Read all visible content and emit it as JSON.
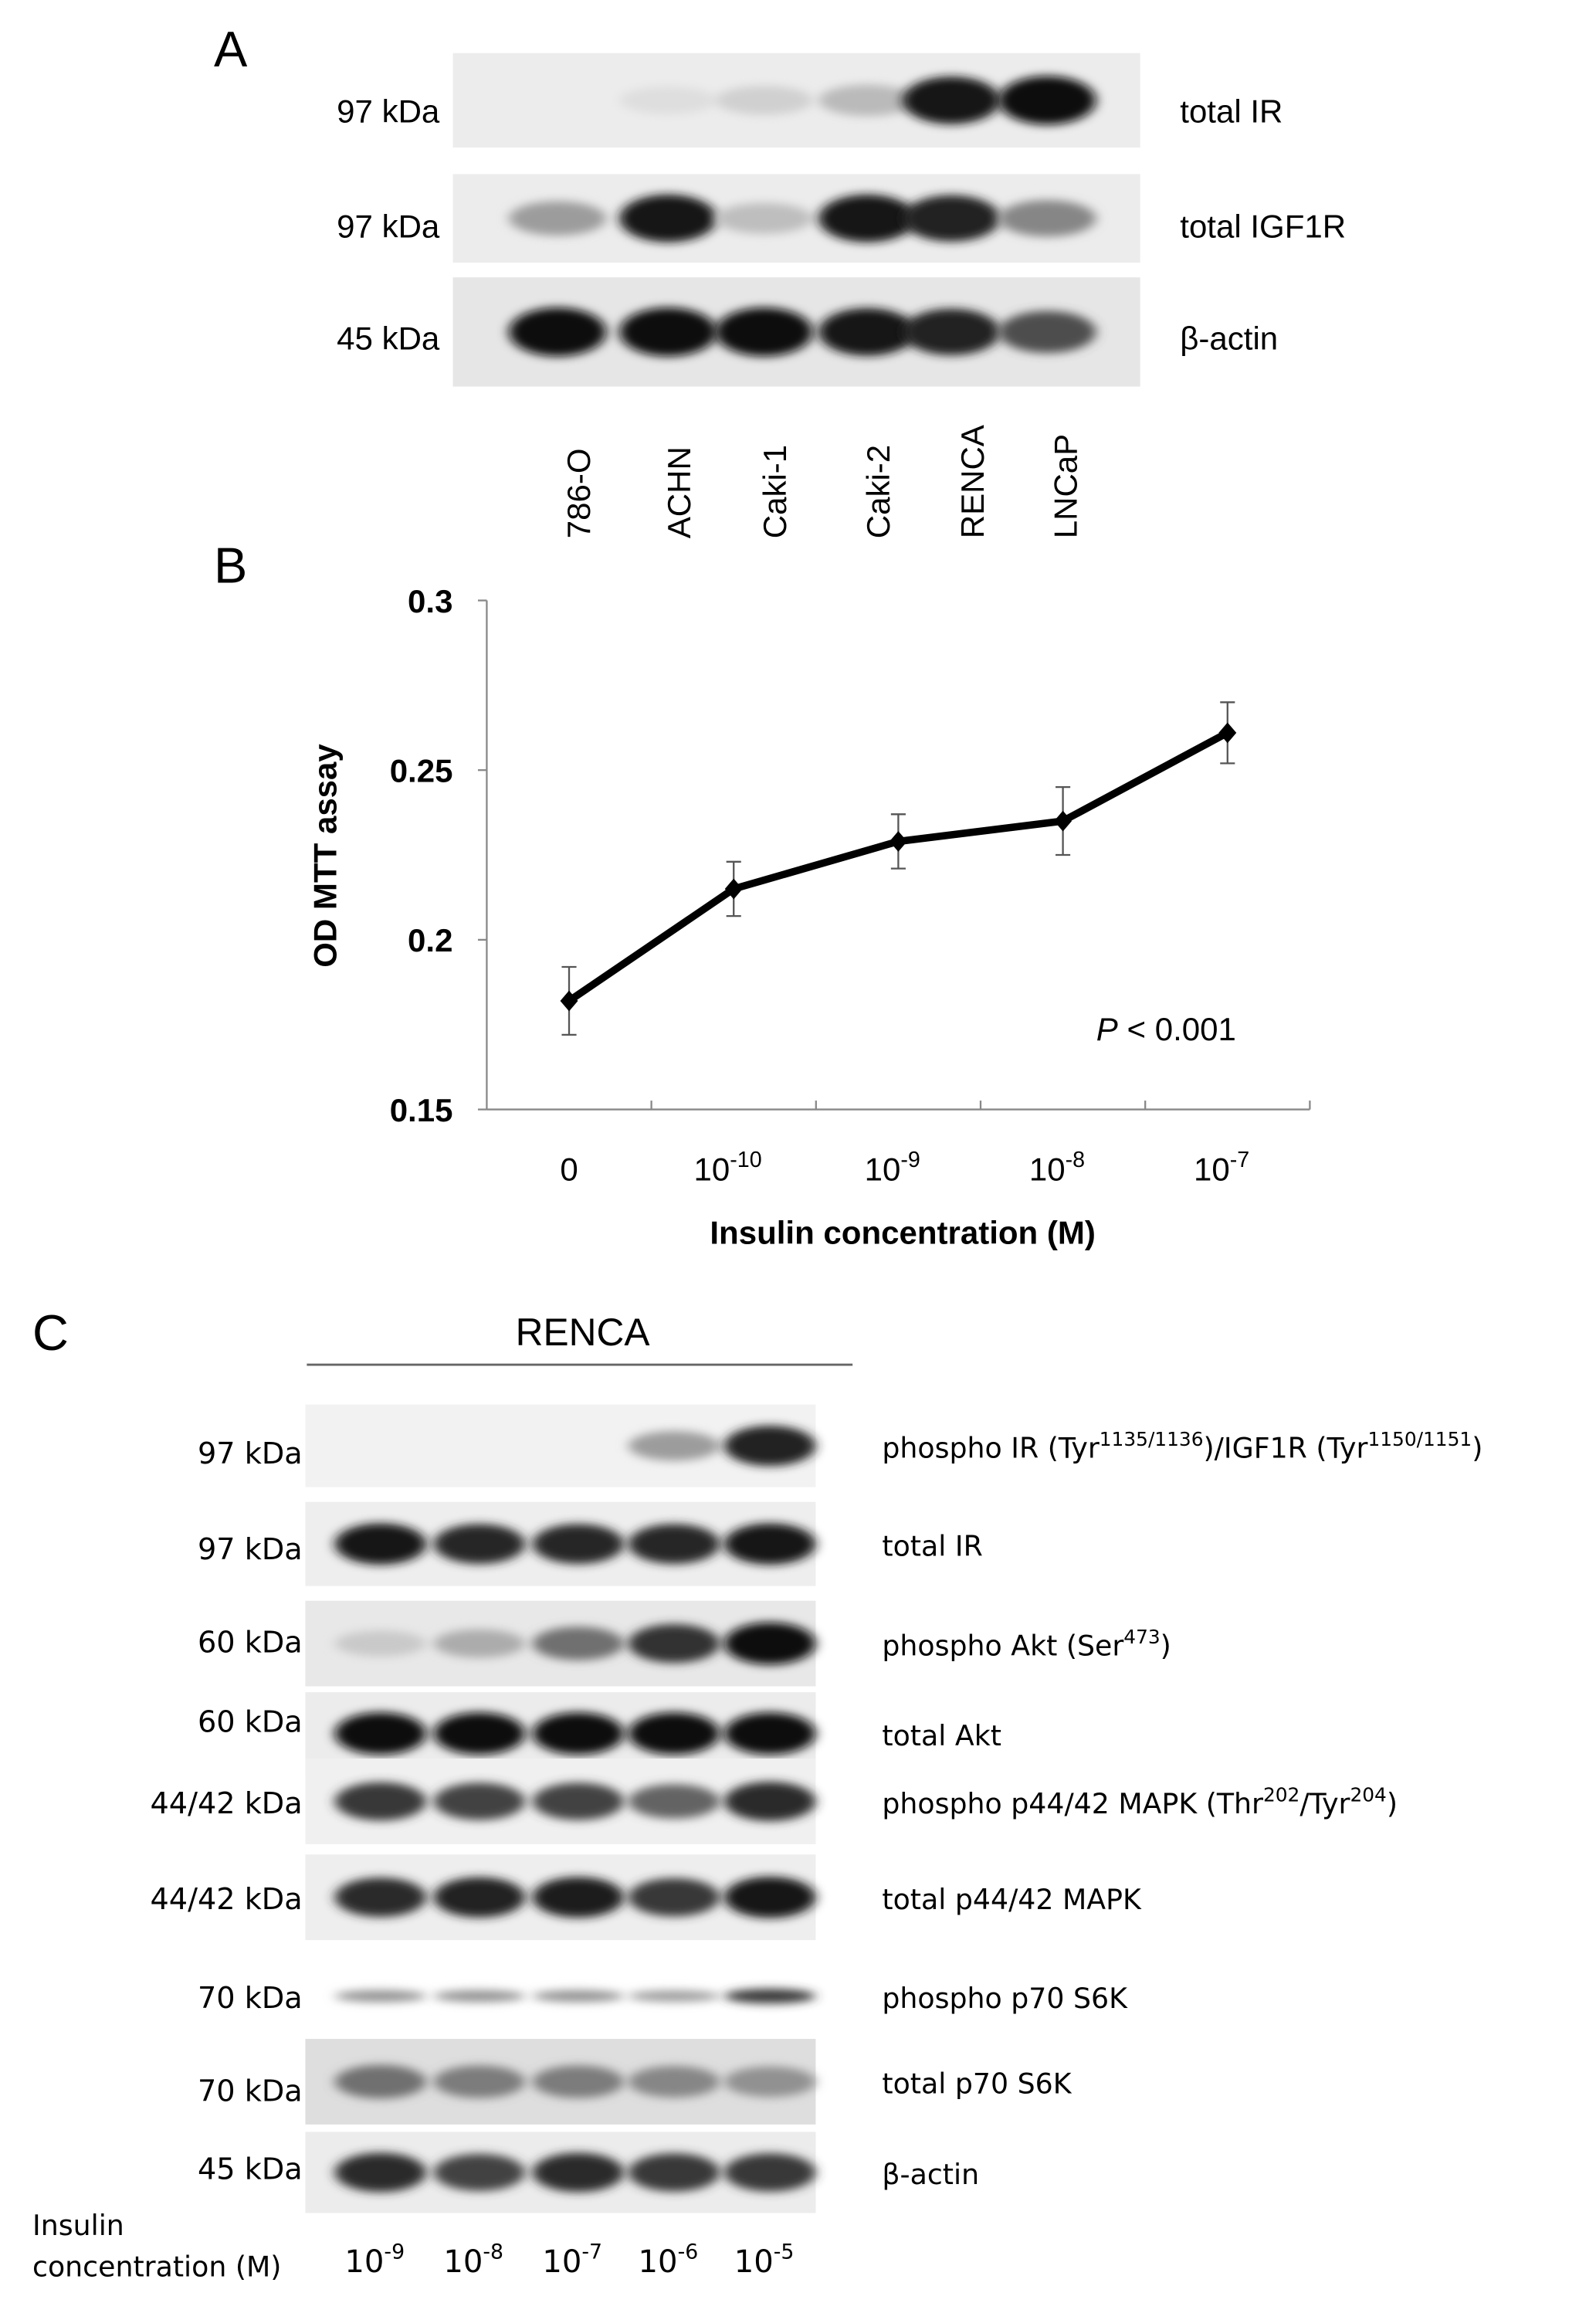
{
  "panel_a": {
    "letter": "A",
    "lanes": [
      "786-O",
      "ACHN",
      "Caki-1",
      "Caki-2",
      "RENCA",
      "LNCaP"
    ],
    "rows": [
      {
        "mw": "97 kDa",
        "label": "total IR",
        "intensity": [
          0.0,
          0.06,
          0.12,
          0.22,
          0.95,
          1.0
        ]
      },
      {
        "mw": "97 kDa",
        "label": "total IGF1R",
        "intensity": [
          0.35,
          0.95,
          0.2,
          0.95,
          0.9,
          0.45
        ]
      },
      {
        "mw": "45 kDa",
        "label": "β-actin",
        "intensity": [
          1.0,
          1.0,
          1.0,
          0.95,
          0.9,
          0.7
        ]
      }
    ]
  },
  "panel_b": {
    "letter": "B"
  },
  "chart_data": {
    "type": "line",
    "categories": [
      "0",
      "10^-10",
      "10^-9",
      "10^-8",
      "10^-7"
    ],
    "tick_labels": [
      {
        "base": "0",
        "exp": ""
      },
      {
        "base": "10",
        "exp": "-10"
      },
      {
        "base": "10",
        "exp": "-9"
      },
      {
        "base": "10",
        "exp": "-8"
      },
      {
        "base": "10",
        "exp": "-7"
      }
    ],
    "values": [
      0.182,
      0.215,
      0.229,
      0.235,
      0.261
    ],
    "errors": [
      0.01,
      0.008,
      0.008,
      0.01,
      0.009
    ],
    "xlabel": "Insulin concentration (M)",
    "ylabel": "OD MTT assay",
    "ylim": [
      0.15,
      0.3
    ],
    "yticks": [
      "0.15",
      "0.2",
      "0.25",
      "0.3"
    ],
    "annotation": {
      "italic": "P",
      "text": " < 0.001"
    },
    "grid": false,
    "marker": "diamond",
    "color": "#000000"
  },
  "panel_c": {
    "letter": "C",
    "group_label": "RENCA",
    "conc_label_line1": "Insulin",
    "conc_label_line2": "concentration (M)",
    "lanes": [
      {
        "base": "10",
        "exp": "-9"
      },
      {
        "base": "10",
        "exp": "-8"
      },
      {
        "base": "10",
        "exp": "-7"
      },
      {
        "base": "10",
        "exp": "-6"
      },
      {
        "base": "10",
        "exp": "-5"
      }
    ],
    "rows": [
      {
        "mw": "97 kDa",
        "label": [
          {
            "t": "phospho IR (Tyr"
          },
          {
            "sup": "1135/1136"
          },
          {
            "t": ")/IGF1R (Tyr"
          },
          {
            "sup": "1150/1151"
          },
          {
            "t": ")"
          }
        ],
        "intensity": [
          0.0,
          0.0,
          0.0,
          0.35,
          0.9
        ]
      },
      {
        "mw": "97 kDa",
        "label": [
          {
            "t": "total IR"
          }
        ],
        "intensity": [
          0.95,
          0.88,
          0.88,
          0.88,
          0.95
        ]
      },
      {
        "mw": "60 kDa",
        "label": [
          {
            "t": "phospho Akt (Ser"
          },
          {
            "sup": "473"
          },
          {
            "t": ")"
          }
        ],
        "intensity": [
          0.15,
          0.28,
          0.55,
          0.82,
          1.0
        ]
      },
      {
        "mw": "60 kDa",
        "label": [
          {
            "t": "total Akt"
          }
        ],
        "intensity": [
          1.0,
          1.0,
          1.0,
          1.0,
          1.0
        ]
      },
      {
        "mw": "44/42 kDa",
        "label": [
          {
            "t": "phospho p44/42 MAPK (Thr"
          },
          {
            "sup": "202"
          },
          {
            "t": "/Tyr"
          },
          {
            "sup": "204"
          },
          {
            "t": ")"
          }
        ],
        "intensity": [
          0.8,
          0.75,
          0.75,
          0.6,
          0.85
        ]
      },
      {
        "mw": "44/42 kDa",
        "label": [
          {
            "t": "total p44/42 MAPK"
          }
        ],
        "intensity": [
          0.85,
          0.9,
          0.92,
          0.8,
          0.95
        ]
      },
      {
        "mw": "70 kDa",
        "label": [
          {
            "t": "phospho p70 S6K"
          }
        ],
        "intensity": [
          0.4,
          0.4,
          0.4,
          0.35,
          0.8
        ]
      },
      {
        "mw": "70 kDa",
        "label": [
          {
            "t": "total p70 S6K"
          }
        ],
        "intensity": [
          0.55,
          0.5,
          0.5,
          0.45,
          0.4
        ]
      },
      {
        "mw": "45 kDa",
        "label": [
          {
            "t": "β-actin"
          }
        ],
        "intensity": [
          0.85,
          0.75,
          0.85,
          0.8,
          0.8
        ]
      }
    ]
  }
}
